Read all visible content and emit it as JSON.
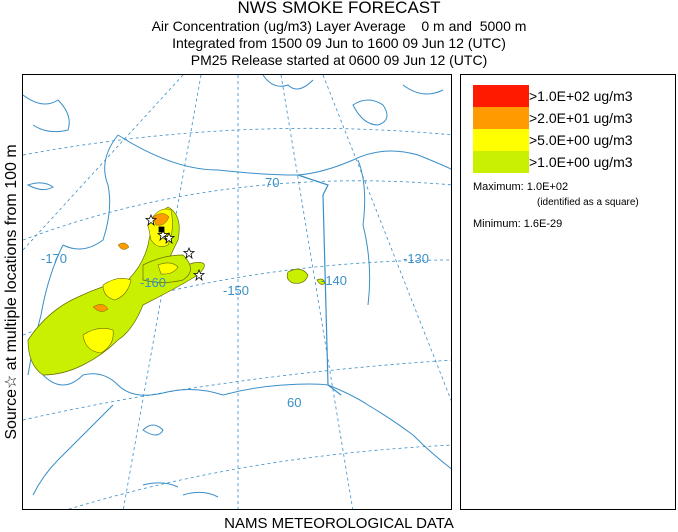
{
  "header": {
    "title": "NWS SMOKE FORECAST",
    "line2": "Air Concentration (ug/m3) Layer Average    0 m and  5000 m",
    "line3": "Integrated from 1500 09 Jun to 1600 09 Jun 12 (UTC)",
    "line4": "PM25 Release started at 0600 09 Jun 12 (UTC)"
  },
  "side_label": "Source☆ at multiple locations  from   100 m",
  "map": {
    "meridian_labels": [
      "-170",
      "-160",
      "-150",
      "-140",
      "-130"
    ],
    "parallel_labels": [
      "70",
      "60"
    ],
    "colors": {
      "coast": "#3a8fc8",
      "grid": "#3a8fc8"
    }
  },
  "legend": {
    "items": [
      {
        "label": ">1.0E+02 ug/m3",
        "color": "#ff1a00"
      },
      {
        "label": ">2.0E+01 ug/m3",
        "color": "#ff9a00"
      },
      {
        "label": ">5.0E+00 ug/m3",
        "color": "#ffff00"
      },
      {
        "label": ">1.0E+00 ug/m3",
        "color": "#c8f000"
      }
    ],
    "maximum": "Maximum: 1.0E+02",
    "max_note": "(identified as a square)",
    "minimum": "Minimum: 1.6E-29"
  },
  "footer": "NAMS METEOROLOGICAL DATA"
}
